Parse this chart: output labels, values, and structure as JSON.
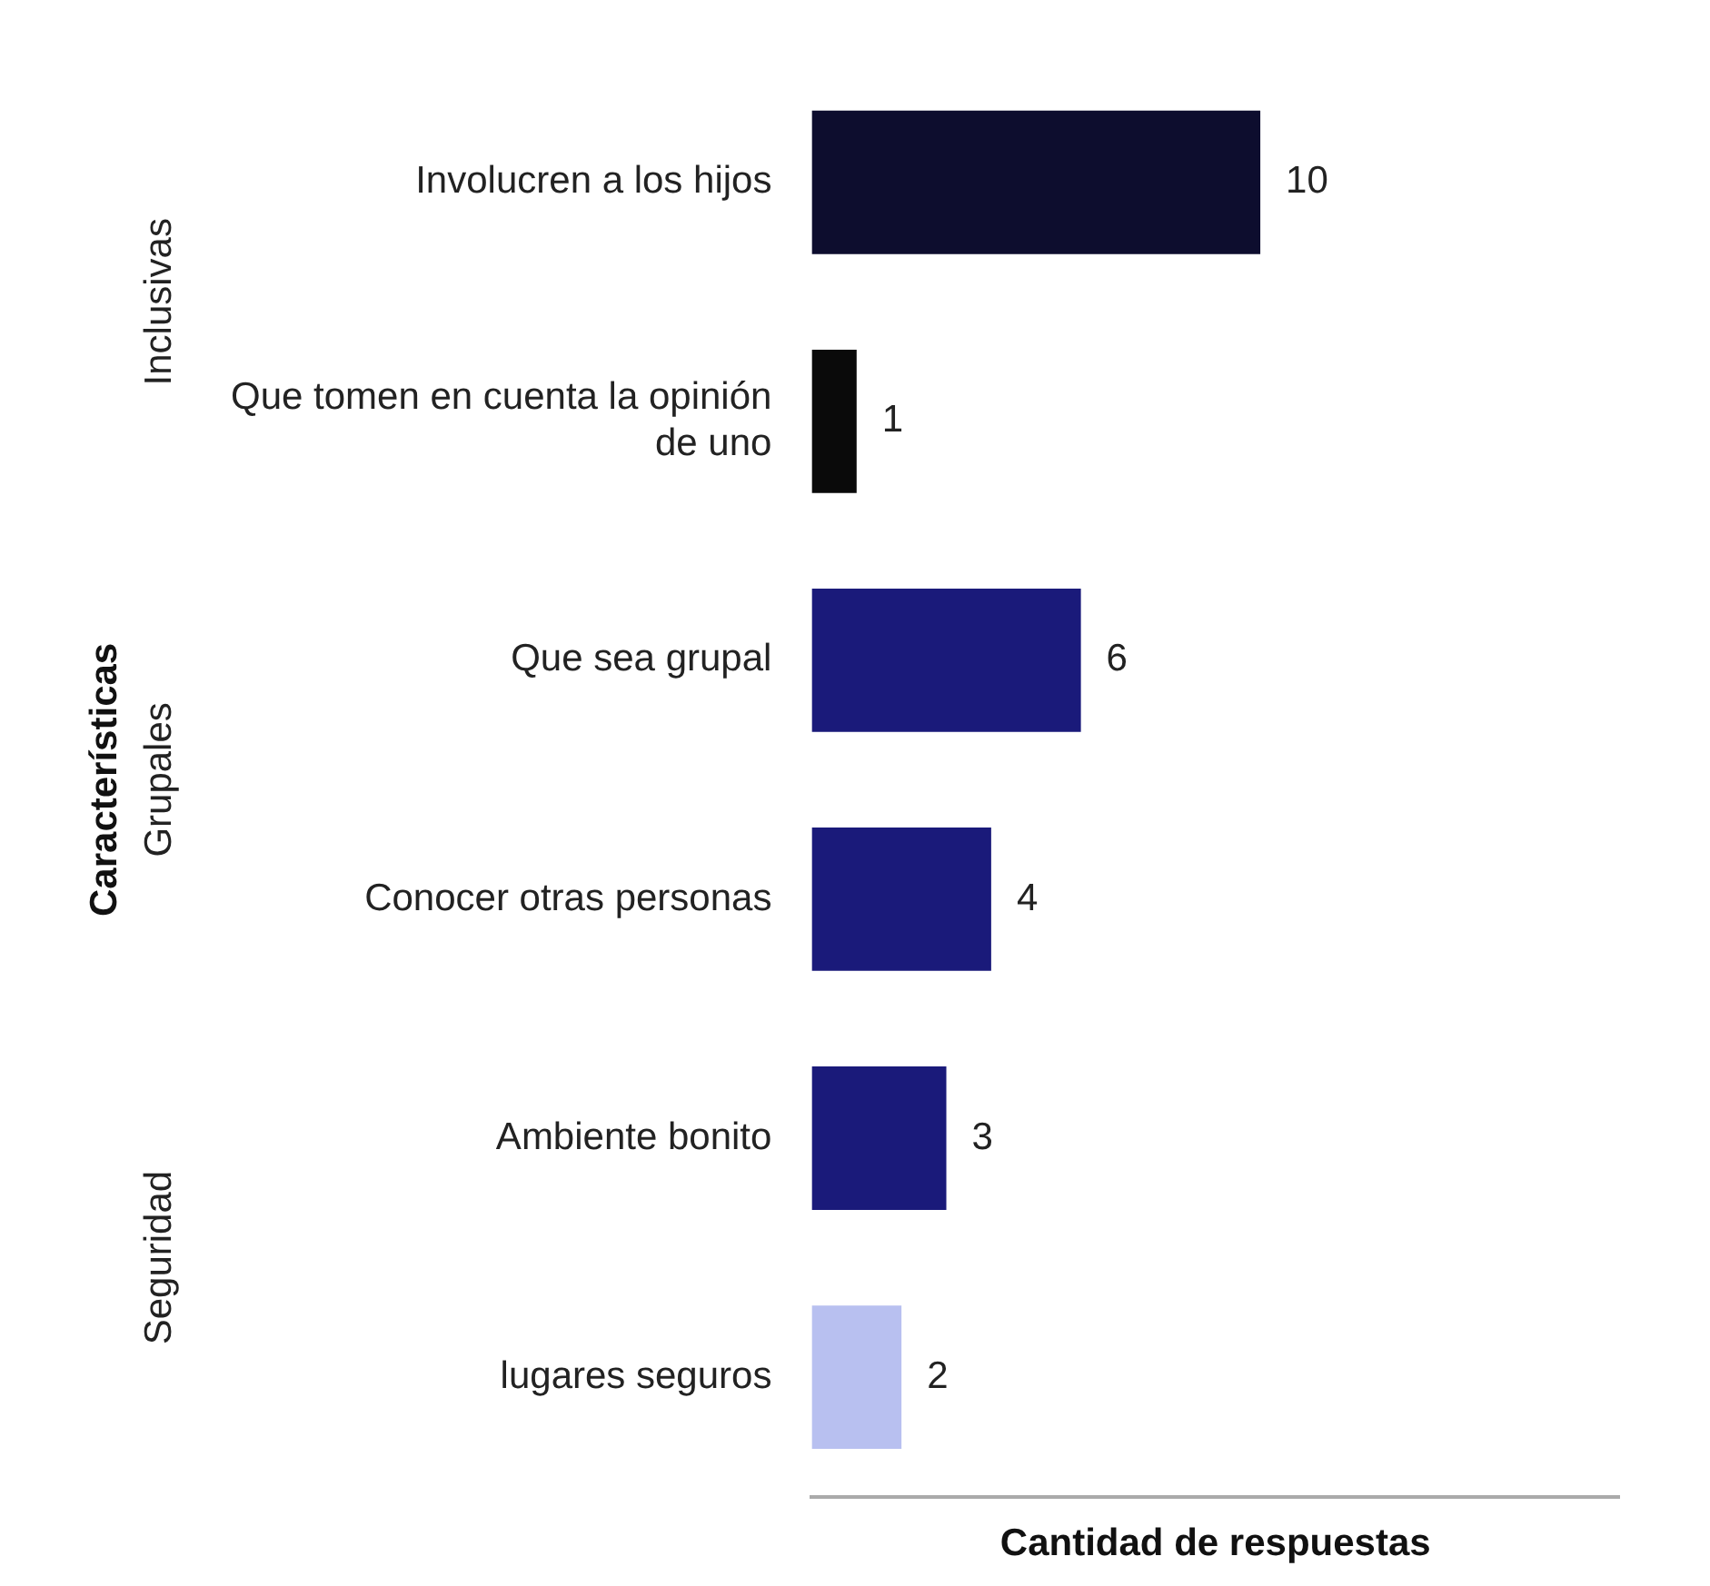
{
  "chart_data": {
    "type": "bar",
    "orientation": "horizontal",
    "xlabel": "Cantidad de respuestas",
    "ylabel": "Características",
    "categories": [
      "Involucren a los hijos",
      "Que tomen en cuenta la opinión de uno",
      "Que sea grupal",
      "Conocer otras personas",
      "Ambiente bonito",
      "lugares seguros"
    ],
    "values": [
      10,
      1,
      6,
      4,
      3,
      2
    ],
    "colors": [
      "#0d0d2e",
      "#0a0a0a",
      "#1a1a7a",
      "#1a1a7a",
      "#1a1a7a",
      "#b8c0f0"
    ],
    "xlim": [
      0,
      18
    ],
    "data_labels": true,
    "grid": false,
    "legend": false,
    "tick_labels": "y",
    "annotations": [
      "Inclusivas",
      "Grupales",
      "Seguridad"
    ]
  }
}
